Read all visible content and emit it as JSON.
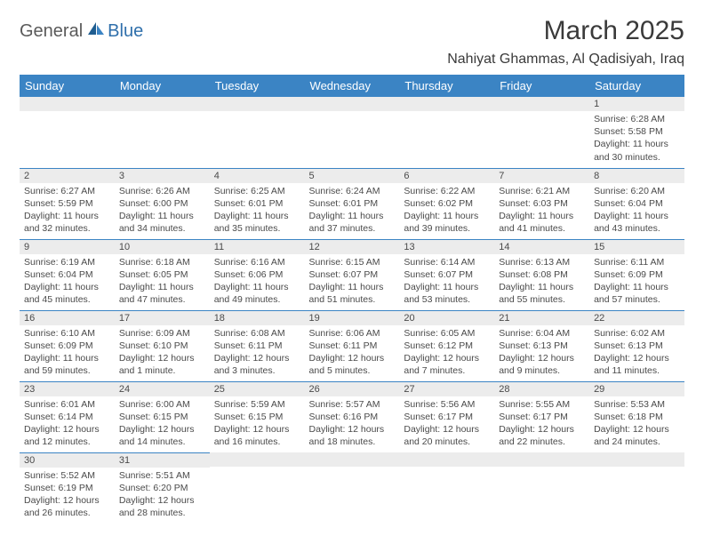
{
  "logo": {
    "text1": "General",
    "text2": "Blue"
  },
  "title": "March 2025",
  "location": "Nahiyat Ghammas, Al Qadisiyah, Iraq",
  "colors": {
    "header_bg": "#3b84c4",
    "header_fg": "#ffffff",
    "daynum_bg": "#ececec",
    "text": "#4a4a4a",
    "border": "#3b84c4",
    "logo_gray": "#5a5a5a",
    "logo_blue": "#2f6fab"
  },
  "day_headers": [
    "Sunday",
    "Monday",
    "Tuesday",
    "Wednesday",
    "Thursday",
    "Friday",
    "Saturday"
  ],
  "weeks": [
    [
      {
        "n": "",
        "sr": "",
        "ss": "",
        "dl": ""
      },
      {
        "n": "",
        "sr": "",
        "ss": "",
        "dl": ""
      },
      {
        "n": "",
        "sr": "",
        "ss": "",
        "dl": ""
      },
      {
        "n": "",
        "sr": "",
        "ss": "",
        "dl": ""
      },
      {
        "n": "",
        "sr": "",
        "ss": "",
        "dl": ""
      },
      {
        "n": "",
        "sr": "",
        "ss": "",
        "dl": ""
      },
      {
        "n": "1",
        "sr": "Sunrise: 6:28 AM",
        "ss": "Sunset: 5:58 PM",
        "dl": "Daylight: 11 hours and 30 minutes."
      }
    ],
    [
      {
        "n": "2",
        "sr": "Sunrise: 6:27 AM",
        "ss": "Sunset: 5:59 PM",
        "dl": "Daylight: 11 hours and 32 minutes."
      },
      {
        "n": "3",
        "sr": "Sunrise: 6:26 AM",
        "ss": "Sunset: 6:00 PM",
        "dl": "Daylight: 11 hours and 34 minutes."
      },
      {
        "n": "4",
        "sr": "Sunrise: 6:25 AM",
        "ss": "Sunset: 6:01 PM",
        "dl": "Daylight: 11 hours and 35 minutes."
      },
      {
        "n": "5",
        "sr": "Sunrise: 6:24 AM",
        "ss": "Sunset: 6:01 PM",
        "dl": "Daylight: 11 hours and 37 minutes."
      },
      {
        "n": "6",
        "sr": "Sunrise: 6:22 AM",
        "ss": "Sunset: 6:02 PM",
        "dl": "Daylight: 11 hours and 39 minutes."
      },
      {
        "n": "7",
        "sr": "Sunrise: 6:21 AM",
        "ss": "Sunset: 6:03 PM",
        "dl": "Daylight: 11 hours and 41 minutes."
      },
      {
        "n": "8",
        "sr": "Sunrise: 6:20 AM",
        "ss": "Sunset: 6:04 PM",
        "dl": "Daylight: 11 hours and 43 minutes."
      }
    ],
    [
      {
        "n": "9",
        "sr": "Sunrise: 6:19 AM",
        "ss": "Sunset: 6:04 PM",
        "dl": "Daylight: 11 hours and 45 minutes."
      },
      {
        "n": "10",
        "sr": "Sunrise: 6:18 AM",
        "ss": "Sunset: 6:05 PM",
        "dl": "Daylight: 11 hours and 47 minutes."
      },
      {
        "n": "11",
        "sr": "Sunrise: 6:16 AM",
        "ss": "Sunset: 6:06 PM",
        "dl": "Daylight: 11 hours and 49 minutes."
      },
      {
        "n": "12",
        "sr": "Sunrise: 6:15 AM",
        "ss": "Sunset: 6:07 PM",
        "dl": "Daylight: 11 hours and 51 minutes."
      },
      {
        "n": "13",
        "sr": "Sunrise: 6:14 AM",
        "ss": "Sunset: 6:07 PM",
        "dl": "Daylight: 11 hours and 53 minutes."
      },
      {
        "n": "14",
        "sr": "Sunrise: 6:13 AM",
        "ss": "Sunset: 6:08 PM",
        "dl": "Daylight: 11 hours and 55 minutes."
      },
      {
        "n": "15",
        "sr": "Sunrise: 6:11 AM",
        "ss": "Sunset: 6:09 PM",
        "dl": "Daylight: 11 hours and 57 minutes."
      }
    ],
    [
      {
        "n": "16",
        "sr": "Sunrise: 6:10 AM",
        "ss": "Sunset: 6:09 PM",
        "dl": "Daylight: 11 hours and 59 minutes."
      },
      {
        "n": "17",
        "sr": "Sunrise: 6:09 AM",
        "ss": "Sunset: 6:10 PM",
        "dl": "Daylight: 12 hours and 1 minute."
      },
      {
        "n": "18",
        "sr": "Sunrise: 6:08 AM",
        "ss": "Sunset: 6:11 PM",
        "dl": "Daylight: 12 hours and 3 minutes."
      },
      {
        "n": "19",
        "sr": "Sunrise: 6:06 AM",
        "ss": "Sunset: 6:11 PM",
        "dl": "Daylight: 12 hours and 5 minutes."
      },
      {
        "n": "20",
        "sr": "Sunrise: 6:05 AM",
        "ss": "Sunset: 6:12 PM",
        "dl": "Daylight: 12 hours and 7 minutes."
      },
      {
        "n": "21",
        "sr": "Sunrise: 6:04 AM",
        "ss": "Sunset: 6:13 PM",
        "dl": "Daylight: 12 hours and 9 minutes."
      },
      {
        "n": "22",
        "sr": "Sunrise: 6:02 AM",
        "ss": "Sunset: 6:13 PM",
        "dl": "Daylight: 12 hours and 11 minutes."
      }
    ],
    [
      {
        "n": "23",
        "sr": "Sunrise: 6:01 AM",
        "ss": "Sunset: 6:14 PM",
        "dl": "Daylight: 12 hours and 12 minutes."
      },
      {
        "n": "24",
        "sr": "Sunrise: 6:00 AM",
        "ss": "Sunset: 6:15 PM",
        "dl": "Daylight: 12 hours and 14 minutes."
      },
      {
        "n": "25",
        "sr": "Sunrise: 5:59 AM",
        "ss": "Sunset: 6:15 PM",
        "dl": "Daylight: 12 hours and 16 minutes."
      },
      {
        "n": "26",
        "sr": "Sunrise: 5:57 AM",
        "ss": "Sunset: 6:16 PM",
        "dl": "Daylight: 12 hours and 18 minutes."
      },
      {
        "n": "27",
        "sr": "Sunrise: 5:56 AM",
        "ss": "Sunset: 6:17 PM",
        "dl": "Daylight: 12 hours and 20 minutes."
      },
      {
        "n": "28",
        "sr": "Sunrise: 5:55 AM",
        "ss": "Sunset: 6:17 PM",
        "dl": "Daylight: 12 hours and 22 minutes."
      },
      {
        "n": "29",
        "sr": "Sunrise: 5:53 AM",
        "ss": "Sunset: 6:18 PM",
        "dl": "Daylight: 12 hours and 24 minutes."
      }
    ],
    [
      {
        "n": "30",
        "sr": "Sunrise: 5:52 AM",
        "ss": "Sunset: 6:19 PM",
        "dl": "Daylight: 12 hours and 26 minutes."
      },
      {
        "n": "31",
        "sr": "Sunrise: 5:51 AM",
        "ss": "Sunset: 6:20 PM",
        "dl": "Daylight: 12 hours and 28 minutes."
      },
      {
        "n": "",
        "sr": "",
        "ss": "",
        "dl": ""
      },
      {
        "n": "",
        "sr": "",
        "ss": "",
        "dl": ""
      },
      {
        "n": "",
        "sr": "",
        "ss": "",
        "dl": ""
      },
      {
        "n": "",
        "sr": "",
        "ss": "",
        "dl": ""
      },
      {
        "n": "",
        "sr": "",
        "ss": "",
        "dl": ""
      }
    ]
  ]
}
